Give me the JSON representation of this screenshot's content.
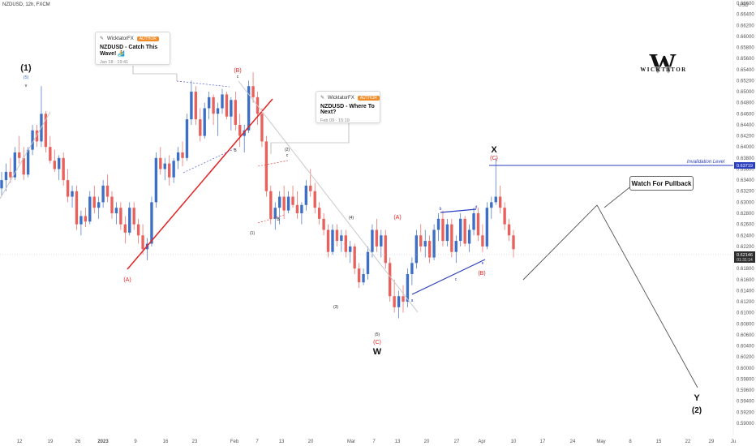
{
  "header": {
    "symbol": "NZDUSD, 12h, FXCM"
  },
  "axis": {
    "currency": "USD",
    "price_ticks": [
      "0.66600",
      "0.66400",
      "0.66200",
      "0.66000",
      "0.65800",
      "0.65600",
      "0.65400",
      "0.65200",
      "0.65000",
      "0.64800",
      "0.64600",
      "0.64400",
      "0.64200",
      "0.64000",
      "0.63800",
      "0.63600",
      "0.63400",
      "0.63200",
      "0.63000",
      "0.62800",
      "0.62600",
      "0.62400",
      "0.62200",
      "0.62000",
      "0.61800",
      "0.61600",
      "0.61400",
      "0.61200",
      "0.61000",
      "0.60800",
      "0.60600",
      "0.60400",
      "0.60200",
      "0.60000",
      "0.59800",
      "0.59600",
      "0.59400",
      "0.59200",
      "0.59000"
    ],
    "time_ticks": [
      "12",
      "19",
      "26",
      "2023",
      "9",
      "16",
      "23",
      "Feb",
      "7",
      "13",
      "20",
      "Mar",
      "7",
      "13",
      "20",
      "27",
      "Apr",
      "10",
      "17",
      "24",
      "May",
      "8",
      "15",
      "22",
      "29",
      "Ju"
    ],
    "current_price": "0.62146",
    "countdown": "01:31:14",
    "invalidation_price": "0.63719"
  },
  "notes": [
    {
      "author": "WicktatorFX",
      "badge": "AUTHOR",
      "title": "NZDUSD - Catch This Wave! 🏄",
      "time": "Jan 18 · 19:41"
    },
    {
      "author": "WicktatorFX",
      "badge": "AUTHOR",
      "title": "NZDUSD - Where To Next?",
      "time": "Feb 09 · 15:19"
    }
  ],
  "labels": {
    "wave1": "(1)",
    "wave1_5": "(5)",
    "wave1_v": "v",
    "waveA_big": "(A)",
    "waveB_big": "(B)",
    "b_small": "B",
    "c_small": "c",
    "s1": "(1)",
    "s2": "(2)",
    "s3": "(3)",
    "s4": "(4)",
    "s5": "(5)",
    "sB": "B",
    "sC": "c",
    "A_red": "(A)",
    "C_red": "(C)",
    "W": "W",
    "ta": "a",
    "tb": "b",
    "tc": "c",
    "td": "d",
    "te": "e",
    "B_red": "(B)",
    "X": "X",
    "C_red2": "(C)",
    "invalidation": "Invalidation Level",
    "pullback": "Watch For Pullback",
    "Y": "Y",
    "wave2": "(2)"
  },
  "brand": {
    "mark": "W",
    "name": "WICKTATOR"
  },
  "colors": {
    "up": "#3d6fc4",
    "down": "#e8615c",
    "trend": "#e32222",
    "invalid": "#2b3fbf",
    "wedge": "#6570d6"
  },
  "chart_data": {
    "type": "candlestick",
    "title": "NZDUSD, 12h, FXCM",
    "ylim": [
      0.589,
      0.667
    ],
    "current_price": 0.62146,
    "invalidation_level": 0.63719,
    "candles": [
      [
        0.6325,
        0.6355,
        0.631,
        0.634
      ],
      [
        0.634,
        0.637,
        0.632,
        0.6355
      ],
      [
        0.6355,
        0.638,
        0.6335,
        0.6345
      ],
      [
        0.6345,
        0.64,
        0.634,
        0.639
      ],
      [
        0.639,
        0.642,
        0.637,
        0.638
      ],
      [
        0.638,
        0.64,
        0.634,
        0.635
      ],
      [
        0.635,
        0.64,
        0.6345,
        0.6395
      ],
      [
        0.6395,
        0.644,
        0.6385,
        0.643
      ],
      [
        0.643,
        0.644,
        0.64,
        0.641
      ],
      [
        0.641,
        0.651,
        0.64,
        0.646
      ],
      [
        0.646,
        0.6465,
        0.639,
        0.64
      ],
      [
        0.64,
        0.642,
        0.637,
        0.6375
      ],
      [
        0.6375,
        0.6395,
        0.6355,
        0.636
      ],
      [
        0.636,
        0.6385,
        0.634,
        0.638
      ],
      [
        0.638,
        0.639,
        0.633,
        0.634
      ],
      [
        0.634,
        0.636,
        0.63,
        0.631
      ],
      [
        0.631,
        0.633,
        0.629,
        0.632
      ],
      [
        0.632,
        0.633,
        0.625,
        0.626
      ],
      [
        0.626,
        0.6285,
        0.624,
        0.6275
      ],
      [
        0.6275,
        0.629,
        0.6255,
        0.6265
      ],
      [
        0.6265,
        0.632,
        0.626,
        0.631
      ],
      [
        0.631,
        0.633,
        0.628,
        0.629
      ],
      [
        0.629,
        0.631,
        0.627,
        0.63
      ],
      [
        0.63,
        0.634,
        0.629,
        0.633
      ],
      [
        0.633,
        0.635,
        0.63,
        0.631
      ],
      [
        0.631,
        0.632,
        0.627,
        0.628
      ],
      [
        0.628,
        0.63,
        0.626,
        0.629
      ],
      [
        0.629,
        0.63,
        0.625,
        0.626
      ],
      [
        0.626,
        0.6275,
        0.6225,
        0.6245
      ],
      [
        0.6245,
        0.63,
        0.624,
        0.629
      ],
      [
        0.629,
        0.63,
        0.625,
        0.626
      ],
      [
        0.626,
        0.627,
        0.6225,
        0.624
      ],
      [
        0.624,
        0.626,
        0.6205,
        0.6215
      ],
      [
        0.6215,
        0.6235,
        0.6195,
        0.6225
      ],
      [
        0.6225,
        0.631,
        0.622,
        0.63
      ],
      [
        0.63,
        0.639,
        0.629,
        0.638
      ],
      [
        0.638,
        0.64,
        0.635,
        0.636
      ],
      [
        0.636,
        0.638,
        0.634,
        0.637
      ],
      [
        0.637,
        0.6385,
        0.633,
        0.6345
      ],
      [
        0.6345,
        0.638,
        0.6335,
        0.6375
      ],
      [
        0.6375,
        0.64,
        0.636,
        0.639
      ],
      [
        0.639,
        0.641,
        0.6365,
        0.638
      ],
      [
        0.638,
        0.646,
        0.6375,
        0.645
      ],
      [
        0.645,
        0.652,
        0.644,
        0.65
      ],
      [
        0.65,
        0.651,
        0.644,
        0.645
      ],
      [
        0.645,
        0.647,
        0.641,
        0.642
      ],
      [
        0.642,
        0.648,
        0.6415,
        0.647
      ],
      [
        0.647,
        0.65,
        0.645,
        0.649
      ],
      [
        0.649,
        0.6495,
        0.644,
        0.646
      ],
      [
        0.646,
        0.648,
        0.642,
        0.647
      ],
      [
        0.647,
        0.6505,
        0.646,
        0.6495
      ],
      [
        0.6495,
        0.65,
        0.645,
        0.6455
      ],
      [
        0.6455,
        0.649,
        0.643,
        0.6485
      ],
      [
        0.6485,
        0.65,
        0.643,
        0.644
      ],
      [
        0.644,
        0.646,
        0.64,
        0.642
      ],
      [
        0.642,
        0.644,
        0.639,
        0.643
      ],
      [
        0.643,
        0.652,
        0.6425,
        0.651
      ],
      [
        0.651,
        0.6535,
        0.648,
        0.649
      ],
      [
        0.649,
        0.65,
        0.644,
        0.646
      ],
      [
        0.646,
        0.647,
        0.64,
        0.641
      ],
      [
        0.641,
        0.642,
        0.631,
        0.632
      ],
      [
        0.632,
        0.633,
        0.626,
        0.627
      ],
      [
        0.627,
        0.63,
        0.625,
        0.629
      ],
      [
        0.629,
        0.632,
        0.626,
        0.631
      ],
      [
        0.631,
        0.633,
        0.627,
        0.6285
      ],
      [
        0.6285,
        0.632,
        0.628,
        0.631
      ],
      [
        0.631,
        0.633,
        0.629,
        0.6295
      ],
      [
        0.6295,
        0.632,
        0.627,
        0.628
      ],
      [
        0.628,
        0.63,
        0.626,
        0.6295
      ],
      [
        0.6295,
        0.634,
        0.6285,
        0.633
      ],
      [
        0.633,
        0.636,
        0.631,
        0.632
      ],
      [
        0.632,
        0.6335,
        0.628,
        0.629
      ],
      [
        0.629,
        0.63,
        0.626,
        0.627
      ],
      [
        0.627,
        0.628,
        0.624,
        0.625
      ],
      [
        0.625,
        0.626,
        0.62,
        0.621
      ],
      [
        0.621,
        0.626,
        0.6205,
        0.625
      ],
      [
        0.625,
        0.626,
        0.622,
        0.623
      ],
      [
        0.623,
        0.625,
        0.621,
        0.624
      ],
      [
        0.624,
        0.625,
        0.62,
        0.621
      ],
      [
        0.621,
        0.623,
        0.619,
        0.622
      ],
      [
        0.622,
        0.6225,
        0.617,
        0.618
      ],
      [
        0.618,
        0.619,
        0.6145,
        0.6155
      ],
      [
        0.6155,
        0.618,
        0.615,
        0.617
      ],
      [
        0.617,
        0.622,
        0.616,
        0.621
      ],
      [
        0.621,
        0.626,
        0.62,
        0.625
      ],
      [
        0.625,
        0.627,
        0.621,
        0.622
      ],
      [
        0.622,
        0.625,
        0.62,
        0.624
      ],
      [
        0.624,
        0.625,
        0.618,
        0.619
      ],
      [
        0.619,
        0.62,
        0.612,
        0.613
      ],
      [
        0.613,
        0.616,
        0.61,
        0.611
      ],
      [
        0.611,
        0.614,
        0.609,
        0.613
      ],
      [
        0.613,
        0.615,
        0.61,
        0.612
      ],
      [
        0.612,
        0.618,
        0.611,
        0.617
      ],
      [
        0.617,
        0.62,
        0.615,
        0.619
      ],
      [
        0.619,
        0.625,
        0.618,
        0.624
      ],
      [
        0.624,
        0.626,
        0.621,
        0.622
      ],
      [
        0.622,
        0.625,
        0.62,
        0.623
      ],
      [
        0.623,
        0.624,
        0.619,
        0.62
      ],
      [
        0.62,
        0.626,
        0.6195,
        0.625
      ],
      [
        0.625,
        0.628,
        0.623,
        0.627
      ],
      [
        0.627,
        0.6285,
        0.622,
        0.623
      ],
      [
        0.623,
        0.627,
        0.622,
        0.626
      ],
      [
        0.626,
        0.627,
        0.62,
        0.621
      ],
      [
        0.621,
        0.624,
        0.619,
        0.623
      ],
      [
        0.623,
        0.628,
        0.622,
        0.627
      ],
      [
        0.627,
        0.6275,
        0.622,
        0.6225
      ],
      [
        0.6225,
        0.626,
        0.621,
        0.625
      ],
      [
        0.625,
        0.629,
        0.624,
        0.628
      ],
      [
        0.628,
        0.629,
        0.623,
        0.624
      ],
      [
        0.624,
        0.626,
        0.621,
        0.622
      ],
      [
        0.622,
        0.63,
        0.6215,
        0.629
      ],
      [
        0.629,
        0.631,
        0.627,
        0.63
      ],
      [
        0.63,
        0.638,
        0.6295,
        0.631
      ],
      [
        0.631,
        0.633,
        0.628,
        0.629
      ],
      [
        0.629,
        0.63,
        0.625,
        0.626
      ],
      [
        0.626,
        0.627,
        0.623,
        0.624
      ],
      [
        0.624,
        0.625,
        0.62,
        0.6215
      ]
    ]
  }
}
